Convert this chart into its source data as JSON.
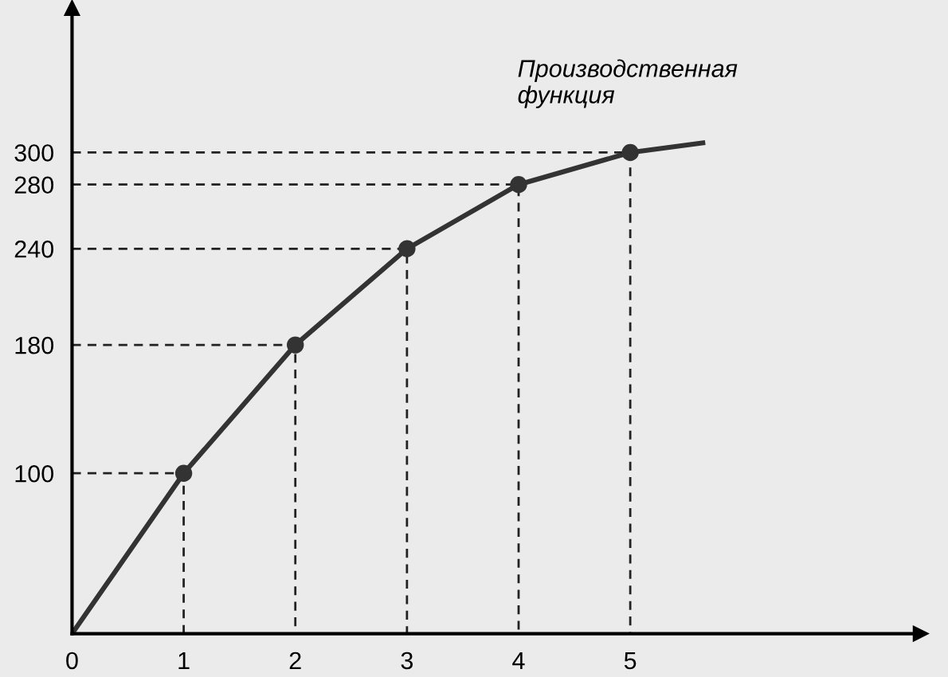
{
  "chart_data": {
    "type": "line",
    "x": [
      0,
      1,
      2,
      3,
      4,
      5,
      5.65
    ],
    "series": [
      {
        "color": "#333333",
        "values": [
          0,
          100,
          180,
          240,
          280,
          300,
          306
        ],
        "marker": "none",
        "line_style": "solid"
      },
      {
        "type": "scatter",
        "color": "#333333",
        "x": [
          1,
          2,
          3,
          4,
          5
        ],
        "values": [
          100,
          180,
          240,
          280,
          300
        ],
        "marker": "circle"
      },
      {
        "color": "#222222",
        "x": [
          0,
          1,
          1
        ],
        "values": [
          100,
          100,
          0
        ],
        "line_style": "dashed",
        "marker": "none"
      },
      {
        "color": "#222222",
        "x": [
          0,
          2,
          2
        ],
        "values": [
          180,
          180,
          0
        ],
        "line_style": "dashed",
        "marker": "none"
      },
      {
        "color": "#222222",
        "x": [
          0,
          3,
          3
        ],
        "values": [
          240,
          240,
          0
        ],
        "line_style": "dashed",
        "marker": "none"
      },
      {
        "color": "#222222",
        "x": [
          0,
          4,
          4
        ],
        "values": [
          280,
          280,
          0
        ],
        "line_style": "dashed",
        "marker": "none"
      },
      {
        "color": "#222222",
        "x": [
          0,
          5,
          5
        ],
        "values": [
          300,
          300,
          0
        ],
        "line_style": "dashed",
        "marker": "none"
      }
    ],
    "xlim": [
      0,
      7.6
    ],
    "ylim": [
      0,
      390
    ],
    "xticks": [
      0,
      1,
      2,
      3,
      4,
      5
    ],
    "yticks": [
      100,
      180,
      240,
      280,
      300
    ],
    "annotations": [
      "Производственная\nфункция"
    ]
  }
}
